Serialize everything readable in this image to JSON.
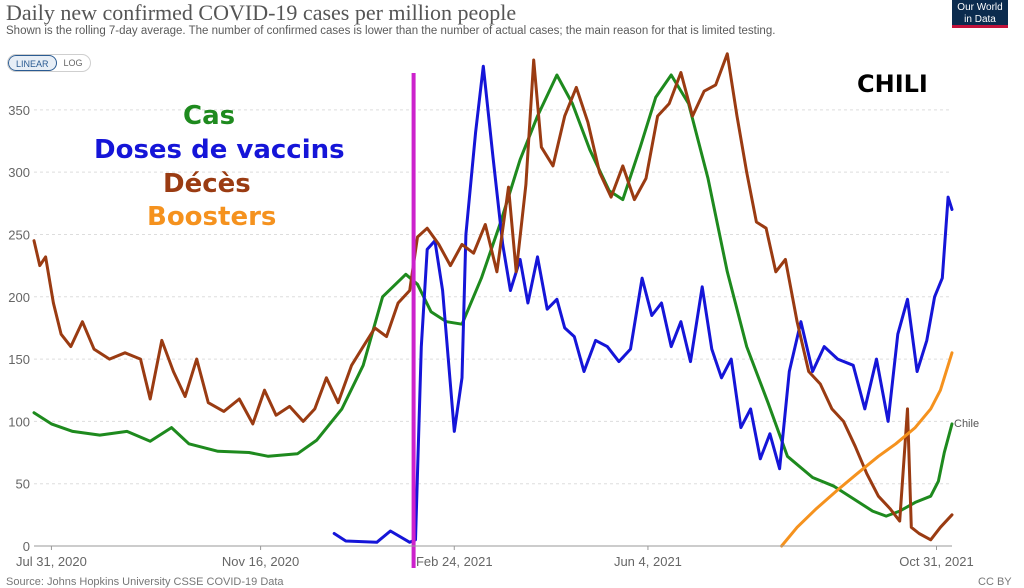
{
  "header": {
    "title": "Daily new confirmed COVID-19 cases per million people",
    "subtitle": "Shown is the rolling 7-day average. The number of confirmed cases is lower than the number of actual cases; the main reason for that is limited testing.",
    "logo_line1": "Our World",
    "logo_line2": "in Data"
  },
  "scale_toggle": {
    "linear_label": "LINEAR",
    "log_label": "LOG"
  },
  "footer": {
    "source": "Source: Johns Hopkins University CSSE COVID-19 Data",
    "license": "CC BY"
  },
  "annotations": {
    "country": "CHILI",
    "cases": "Cas",
    "doses": "Doses de vaccins",
    "deaths": "Décès",
    "boosters": "Boosters"
  },
  "colors": {
    "cases": "#1e8a1e",
    "doses": "#1515d8",
    "deaths": "#9a3b12",
    "boosters": "#f5921e",
    "marker": "#cc22cc",
    "grid": "#dddddd",
    "axis_text": "#666666"
  },
  "chart_data": {
    "type": "line",
    "title": "Daily new confirmed COVID-19 cases per million people",
    "ylim": [
      0,
      390
    ],
    "y_ticks": [
      0,
      50,
      100,
      150,
      200,
      250,
      300,
      350
    ],
    "x_range": [
      "2020-07-22",
      "2021-11-08"
    ],
    "x_ticks": [
      {
        "date": "2020-07-31",
        "label": "Jul 31, 2020"
      },
      {
        "date": "2020-11-16",
        "label": "Nov 16, 2020"
      },
      {
        "date": "2021-02-24",
        "label": "Feb 24, 2021"
      },
      {
        "date": "2021-06-04",
        "label": "Jun 4, 2021"
      },
      {
        "date": "2021-10-31",
        "label": "Oct 31, 2021"
      }
    ],
    "grid": true,
    "end_label": "Chile",
    "marker_date": "2021-02-03",
    "series": [
      {
        "name": "Cas",
        "color": "#1e8a1e",
        "points": [
          [
            "2020-07-22",
            107
          ],
          [
            "2020-07-31",
            98
          ],
          [
            "2020-08-11",
            92
          ],
          [
            "2020-08-25",
            89
          ],
          [
            "2020-09-08",
            92
          ],
          [
            "2020-09-20",
            84
          ],
          [
            "2020-10-01",
            95
          ],
          [
            "2020-10-10",
            82
          ],
          [
            "2020-10-25",
            76
          ],
          [
            "2020-11-10",
            75
          ],
          [
            "2020-11-20",
            72
          ],
          [
            "2020-12-05",
            74
          ],
          [
            "2020-12-15",
            85
          ],
          [
            "2020-12-28",
            110
          ],
          [
            "2021-01-08",
            145
          ],
          [
            "2021-01-18",
            200
          ],
          [
            "2021-01-30",
            218
          ],
          [
            "2021-02-05",
            210
          ],
          [
            "2021-02-12",
            188
          ],
          [
            "2021-02-20",
            180
          ],
          [
            "2021-02-28",
            178
          ],
          [
            "2021-03-10",
            215
          ],
          [
            "2021-03-20",
            260
          ],
          [
            "2021-03-30",
            310
          ],
          [
            "2021-04-08",
            345
          ],
          [
            "2021-04-18",
            378
          ],
          [
            "2021-04-26",
            355
          ],
          [
            "2021-05-05",
            318
          ],
          [
            "2021-05-15",
            285
          ],
          [
            "2021-05-22",
            278
          ],
          [
            "2021-05-31",
            320
          ],
          [
            "2021-06-08",
            360
          ],
          [
            "2021-06-16",
            378
          ],
          [
            "2021-06-25",
            355
          ],
          [
            "2021-07-05",
            295
          ],
          [
            "2021-07-15",
            220
          ],
          [
            "2021-07-25",
            160
          ],
          [
            "2021-08-05",
            115
          ],
          [
            "2021-08-15",
            72
          ],
          [
            "2021-08-28",
            55
          ],
          [
            "2021-09-08",
            48
          ],
          [
            "2021-09-18",
            38
          ],
          [
            "2021-09-28",
            28
          ],
          [
            "2021-10-05",
            24
          ],
          [
            "2021-10-12",
            28
          ],
          [
            "2021-10-20",
            35
          ],
          [
            "2021-10-28",
            40
          ],
          [
            "2021-11-01",
            52
          ],
          [
            "2021-11-04",
            75
          ],
          [
            "2021-11-08",
            98
          ]
        ]
      },
      {
        "name": "Doses de vaccins",
        "color": "#1515d8",
        "points": [
          [
            "2020-12-24",
            10
          ],
          [
            "2020-12-30",
            4
          ],
          [
            "2021-01-15",
            3
          ],
          [
            "2021-01-22",
            12
          ],
          [
            "2021-02-01",
            3
          ],
          [
            "2021-02-04",
            5
          ],
          [
            "2021-02-07",
            160
          ],
          [
            "2021-02-10",
            238
          ],
          [
            "2021-02-14",
            245
          ],
          [
            "2021-02-18",
            205
          ],
          [
            "2021-02-24",
            92
          ],
          [
            "2021-02-28",
            135
          ],
          [
            "2021-03-02",
            250
          ],
          [
            "2021-03-07",
            332
          ],
          [
            "2021-03-11",
            385
          ],
          [
            "2021-03-16",
            312
          ],
          [
            "2021-03-21",
            242
          ],
          [
            "2021-03-25",
            205
          ],
          [
            "2021-03-30",
            230
          ],
          [
            "2021-04-03",
            195
          ],
          [
            "2021-04-08",
            232
          ],
          [
            "2021-04-13",
            190
          ],
          [
            "2021-04-18",
            198
          ],
          [
            "2021-04-22",
            175
          ],
          [
            "2021-04-27",
            168
          ],
          [
            "2021-05-02",
            140
          ],
          [
            "2021-05-08",
            165
          ],
          [
            "2021-05-14",
            160
          ],
          [
            "2021-05-20",
            148
          ],
          [
            "2021-05-26",
            158
          ],
          [
            "2021-06-01",
            215
          ],
          [
            "2021-06-06",
            185
          ],
          [
            "2021-06-11",
            195
          ],
          [
            "2021-06-16",
            160
          ],
          [
            "2021-06-21",
            180
          ],
          [
            "2021-06-26",
            148
          ],
          [
            "2021-07-02",
            208
          ],
          [
            "2021-07-07",
            158
          ],
          [
            "2021-07-12",
            135
          ],
          [
            "2021-07-17",
            150
          ],
          [
            "2021-07-22",
            95
          ],
          [
            "2021-07-27",
            110
          ],
          [
            "2021-08-01",
            70
          ],
          [
            "2021-08-06",
            90
          ],
          [
            "2021-08-11",
            62
          ],
          [
            "2021-08-16",
            140
          ],
          [
            "2021-08-22",
            180
          ],
          [
            "2021-08-28",
            140
          ],
          [
            "2021-09-03",
            160
          ],
          [
            "2021-09-10",
            150
          ],
          [
            "2021-09-18",
            145
          ],
          [
            "2021-09-24",
            110
          ],
          [
            "2021-09-30",
            150
          ],
          [
            "2021-10-06",
            100
          ],
          [
            "2021-10-11",
            170
          ],
          [
            "2021-10-16",
            198
          ],
          [
            "2021-10-21",
            140
          ],
          [
            "2021-10-26",
            165
          ],
          [
            "2021-10-30",
            200
          ],
          [
            "2021-11-03",
            215
          ],
          [
            "2021-11-06",
            280
          ],
          [
            "2021-11-08",
            270
          ]
        ]
      },
      {
        "name": "Décès",
        "color": "#9a3b12",
        "points": [
          [
            "2020-07-22",
            245
          ],
          [
            "2020-07-25",
            225
          ],
          [
            "2020-07-28",
            232
          ],
          [
            "2020-08-01",
            195
          ],
          [
            "2020-08-05",
            170
          ],
          [
            "2020-08-10",
            160
          ],
          [
            "2020-08-16",
            180
          ],
          [
            "2020-08-22",
            158
          ],
          [
            "2020-08-30",
            150
          ],
          [
            "2020-09-07",
            155
          ],
          [
            "2020-09-15",
            150
          ],
          [
            "2020-09-20",
            118
          ],
          [
            "2020-09-26",
            165
          ],
          [
            "2020-10-02",
            140
          ],
          [
            "2020-10-08",
            120
          ],
          [
            "2020-10-14",
            150
          ],
          [
            "2020-10-20",
            115
          ],
          [
            "2020-10-28",
            108
          ],
          [
            "2020-11-05",
            118
          ],
          [
            "2020-11-12",
            98
          ],
          [
            "2020-11-18",
            125
          ],
          [
            "2020-11-24",
            105
          ],
          [
            "2020-12-01",
            112
          ],
          [
            "2020-12-08",
            100
          ],
          [
            "2020-12-14",
            110
          ],
          [
            "2020-12-20",
            135
          ],
          [
            "2020-12-26",
            115
          ],
          [
            "2021-01-02",
            145
          ],
          [
            "2021-01-08",
            160
          ],
          [
            "2021-01-14",
            175
          ],
          [
            "2021-01-20",
            168
          ],
          [
            "2021-01-26",
            195
          ],
          [
            "2021-02-01",
            205
          ],
          [
            "2021-02-05",
            248
          ],
          [
            "2021-02-10",
            255
          ],
          [
            "2021-02-16",
            242
          ],
          [
            "2021-02-22",
            225
          ],
          [
            "2021-02-28",
            242
          ],
          [
            "2021-03-06",
            235
          ],
          [
            "2021-03-12",
            258
          ],
          [
            "2021-03-18",
            220
          ],
          [
            "2021-03-24",
            288
          ],
          [
            "2021-03-28",
            220
          ],
          [
            "2021-04-02",
            290
          ],
          [
            "2021-04-06",
            390
          ],
          [
            "2021-04-10",
            320
          ],
          [
            "2021-04-16",
            305
          ],
          [
            "2021-04-22",
            345
          ],
          [
            "2021-04-28",
            368
          ],
          [
            "2021-05-04",
            340
          ],
          [
            "2021-05-10",
            300
          ],
          [
            "2021-05-16",
            280
          ],
          [
            "2021-05-22",
            305
          ],
          [
            "2021-05-28",
            278
          ],
          [
            "2021-06-03",
            295
          ],
          [
            "2021-06-09",
            345
          ],
          [
            "2021-06-15",
            355
          ],
          [
            "2021-06-21",
            380
          ],
          [
            "2021-06-27",
            345
          ],
          [
            "2021-07-03",
            365
          ],
          [
            "2021-07-09",
            370
          ],
          [
            "2021-07-15",
            395
          ],
          [
            "2021-07-20",
            345
          ],
          [
            "2021-07-25",
            300
          ],
          [
            "2021-07-30",
            260
          ],
          [
            "2021-08-04",
            255
          ],
          [
            "2021-08-09",
            220
          ],
          [
            "2021-08-14",
            230
          ],
          [
            "2021-08-20",
            180
          ],
          [
            "2021-08-26",
            140
          ],
          [
            "2021-09-01",
            130
          ],
          [
            "2021-09-07",
            110
          ],
          [
            "2021-09-13",
            100
          ],
          [
            "2021-09-19",
            80
          ],
          [
            "2021-09-25",
            58
          ],
          [
            "2021-10-01",
            40
          ],
          [
            "2021-10-07",
            30
          ],
          [
            "2021-10-12",
            20
          ],
          [
            "2021-10-16",
            110
          ],
          [
            "2021-10-18",
            15
          ],
          [
            "2021-10-22",
            10
          ],
          [
            "2021-10-28",
            5
          ],
          [
            "2021-11-02",
            15
          ],
          [
            "2021-11-08",
            25
          ]
        ]
      },
      {
        "name": "Boosters",
        "color": "#f5921e",
        "points": [
          [
            "2021-08-12",
            0
          ],
          [
            "2021-08-20",
            15
          ],
          [
            "2021-08-30",
            30
          ],
          [
            "2021-09-10",
            45
          ],
          [
            "2021-09-20",
            58
          ],
          [
            "2021-10-01",
            72
          ],
          [
            "2021-10-10",
            82
          ],
          [
            "2021-10-20",
            95
          ],
          [
            "2021-10-28",
            110
          ],
          [
            "2021-11-02",
            125
          ],
          [
            "2021-11-08",
            155
          ]
        ]
      }
    ]
  }
}
